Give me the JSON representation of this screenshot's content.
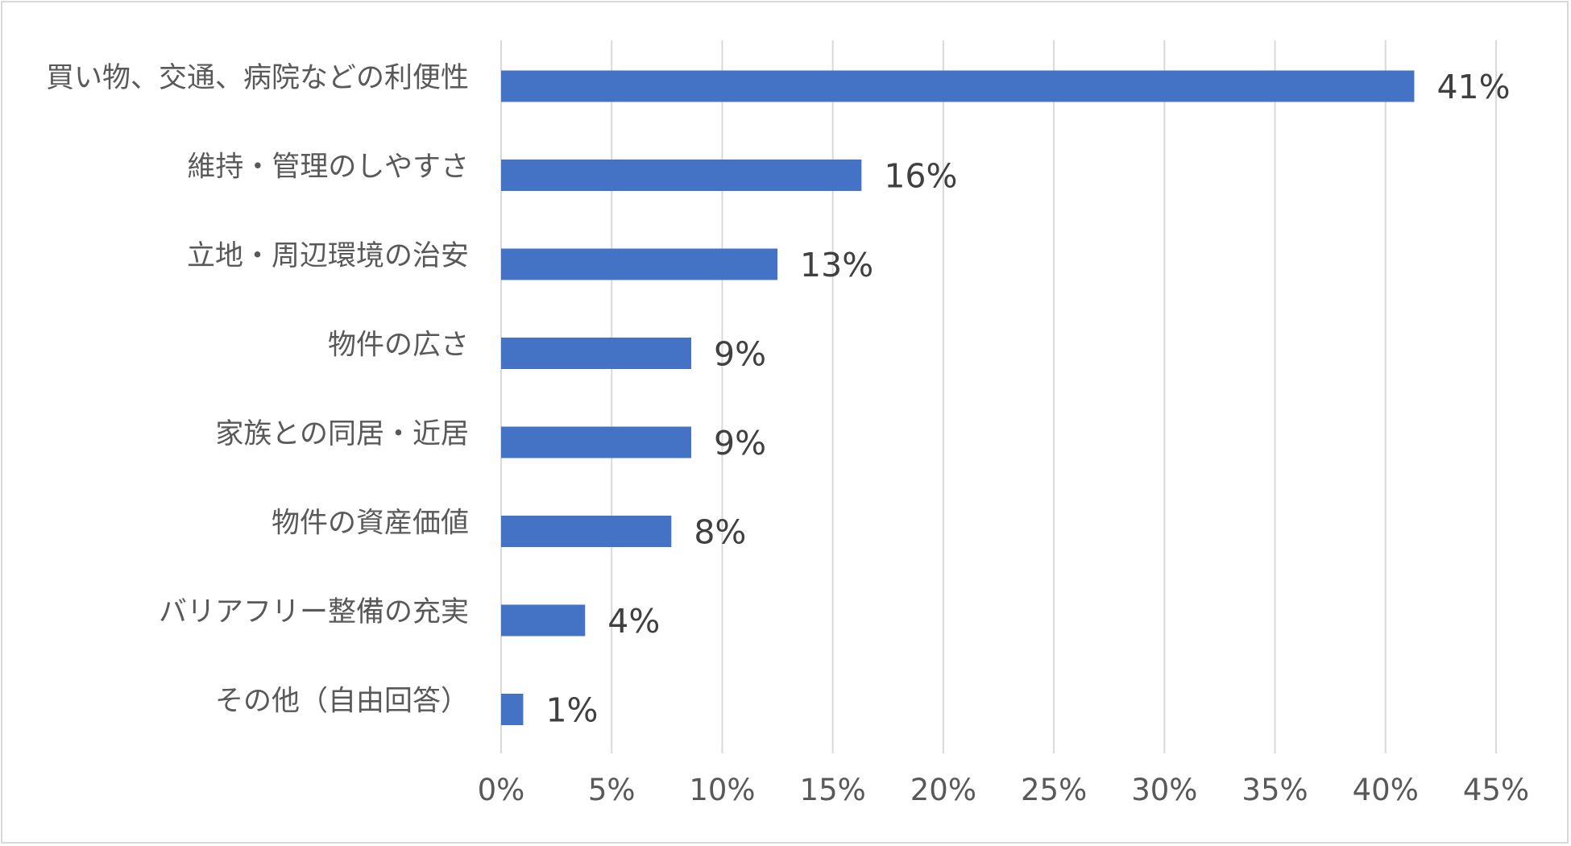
{
  "chart_data": {
    "type": "bar",
    "orientation": "horizontal",
    "categories": [
      "買い物、交通、病院などの利便性",
      "維持・管理のしやすさ",
      "立地・周辺環境の治安",
      "物件の広さ",
      "家族との同居・近居",
      "物件の資産価値",
      "バリアフリー整備の充実",
      "その他（自由回答）"
    ],
    "values": [
      41.3,
      16.3,
      12.5,
      8.6,
      8.6,
      7.7,
      3.8,
      1.0
    ],
    "data_labels": [
      "41%",
      "16%",
      "13%",
      "9%",
      "9%",
      "8%",
      "4%",
      "1%"
    ],
    "x_ticks": [
      0,
      5,
      10,
      15,
      20,
      25,
      30,
      35,
      40,
      45
    ],
    "x_tick_labels": [
      "0%",
      "5%",
      "10%",
      "15%",
      "20%",
      "25%",
      "30%",
      "35%",
      "40%",
      "45%"
    ],
    "xlim": [
      0,
      45
    ],
    "grid": "vertical",
    "legend": "none",
    "title": "",
    "xlabel": "",
    "ylabel": "",
    "colors": {
      "bar": "#4472c4",
      "grid": "#d9d9d9",
      "border": "#d9d9d9",
      "category_text": "#595959",
      "tick_text": "#595959",
      "data_label_text": "#404040"
    }
  }
}
